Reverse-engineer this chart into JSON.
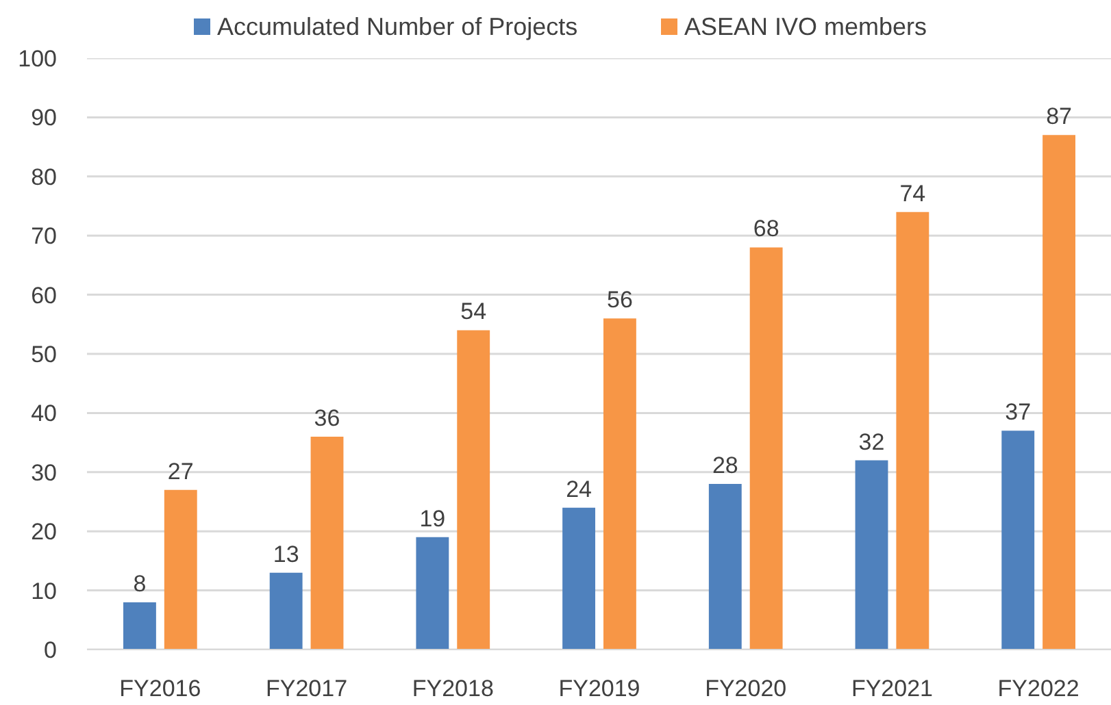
{
  "chart_data": {
    "type": "bar",
    "categories": [
      "FY2016",
      "FY2017",
      "FY2018",
      "FY2019",
      "FY2020",
      "FY2021",
      "FY2022"
    ],
    "series": [
      {
        "name": "Accumulated Number of Projects",
        "color": "#4f81bd",
        "values": [
          8,
          13,
          19,
          24,
          28,
          32,
          37
        ]
      },
      {
        "name": "ASEAN IVO members",
        "color": "#f79646",
        "values": [
          27,
          36,
          54,
          56,
          68,
          74,
          87
        ]
      }
    ],
    "ylim": [
      0,
      100
    ],
    "yticks": [
      0,
      10,
      20,
      30,
      40,
      50,
      60,
      70,
      80,
      90,
      100
    ],
    "grid": "y",
    "legend": "top",
    "data_labels": true
  }
}
